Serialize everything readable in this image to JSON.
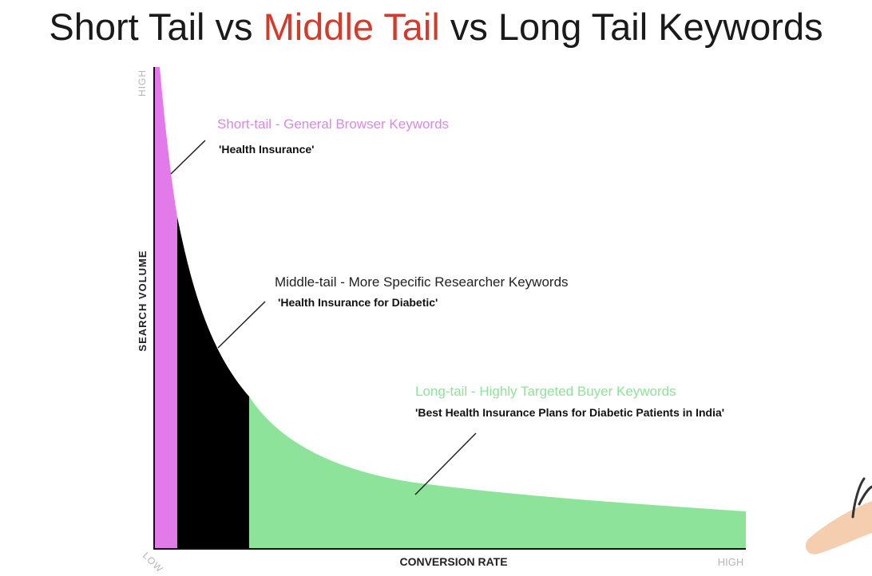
{
  "title": {
    "part1": "Short Tail vs ",
    "accent": "Middle Tail",
    "part2": " vs Long Tail Keywords"
  },
  "axes": {
    "y_label": "SEARCH VOLUME",
    "y_high": "HIGH",
    "x_label": "CONVERSION RATE",
    "x_low": "LOW",
    "x_high": "HIGH"
  },
  "segments": [
    {
      "heading": "Short-tail - General Browser Keywords",
      "example": "'Health Insurance'",
      "color": "#e27be9"
    },
    {
      "heading": "Middle-tail - More Specific Researcher Keywords",
      "example": "'Health Insurance for Diabetic'",
      "color": "#000000"
    },
    {
      "heading": "Long-tail - Highly Targeted Buyer Keywords",
      "example": "'Best Health Insurance Plans for Diabetic Patients in India'",
      "color": "#8de39a"
    }
  ],
  "colors": {
    "title_accent": "#d33b2c",
    "short_label": "#d58be0",
    "middle_label": "#222222",
    "long_label": "#8de39a",
    "axis_label_muted": "#b5b5b5"
  }
}
